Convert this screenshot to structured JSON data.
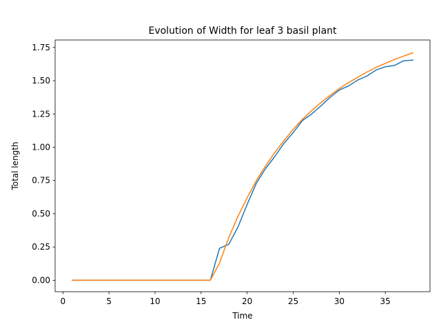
{
  "chart_data": {
    "type": "line",
    "title": "Evolution of Width for leaf 3 basil plant",
    "xlabel": "Time",
    "ylabel": "Total length",
    "xlim": [
      -0.85,
      39.85
    ],
    "ylim": [
      -0.086,
      1.806
    ],
    "xticks": [
      0,
      5,
      10,
      15,
      20,
      25,
      30,
      35
    ],
    "xtick_labels": [
      "0",
      "5",
      "10",
      "15",
      "20",
      "25",
      "30",
      "35"
    ],
    "yticks": [
      0,
      0.25,
      0.5,
      0.75,
      1.0,
      1.25,
      1.5,
      1.75
    ],
    "ytick_labels": [
      "0.00",
      "0.25",
      "0.50",
      "0.75",
      "1.00",
      "1.25",
      "1.50",
      "1.75"
    ],
    "grid": false,
    "series": [
      {
        "color": "#1f77b4",
        "x": [
          1,
          2,
          3,
          4,
          5,
          6,
          7,
          8,
          9,
          10,
          11,
          12,
          13,
          14,
          15,
          16,
          17,
          18,
          19,
          20,
          21,
          22,
          23,
          24,
          25,
          26,
          27,
          28,
          29,
          30,
          31,
          32,
          33,
          34,
          35,
          36,
          37,
          38
        ],
        "y": [
          0,
          0,
          0,
          0,
          0,
          0,
          0,
          0,
          0,
          0,
          0,
          0,
          0,
          0,
          0,
          0,
          0.24,
          0.27,
          0.4,
          0.57,
          0.73,
          0.84,
          0.93,
          1.03,
          1.11,
          1.2,
          1.25,
          1.31,
          1.375,
          1.43,
          1.46,
          1.505,
          1.535,
          1.58,
          1.605,
          1.615,
          1.65,
          1.655
        ]
      },
      {
        "color": "#ff7f0e",
        "x": [
          1,
          2,
          3,
          4,
          5,
          6,
          7,
          8,
          9,
          10,
          11,
          12,
          13,
          14,
          15,
          16,
          17,
          18,
          19,
          20,
          21,
          22,
          23,
          24,
          25,
          26,
          27,
          28,
          29,
          30,
          31,
          32,
          33,
          34,
          35,
          36,
          37,
          38
        ],
        "y": [
          0,
          0,
          0,
          0,
          0,
          0,
          0,
          0,
          0,
          0,
          0,
          0,
          0,
          0,
          0,
          0,
          0.13,
          0.32,
          0.48,
          0.62,
          0.75,
          0.86,
          0.96,
          1.05,
          1.135,
          1.21,
          1.275,
          1.335,
          1.39,
          1.44,
          1.485,
          1.525,
          1.565,
          1.6,
          1.63,
          1.66,
          1.685,
          1.71
        ]
      }
    ]
  }
}
